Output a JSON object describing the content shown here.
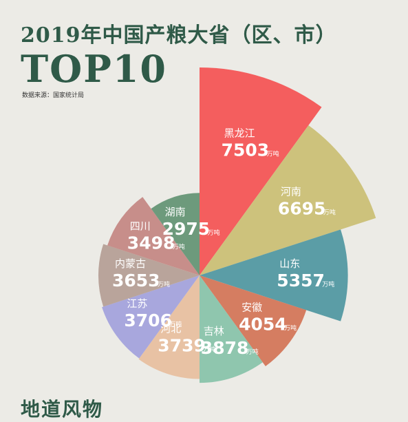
{
  "header": {
    "title": "2019年中国产粮大省（区、市）",
    "subtitle": "TOP10",
    "source": "数据来源：国家统计局"
  },
  "footer": {
    "brand": "地道风物"
  },
  "chart_data": {
    "type": "pie",
    "subtype": "rose",
    "unit": "万吨",
    "categories": [
      "黑龙江",
      "河南",
      "山东",
      "安徽",
      "吉林",
      "河北",
      "江苏",
      "内蒙古",
      "四川",
      "湖南"
    ],
    "values": [
      7503,
      6695,
      5357,
      4054,
      3878,
      3739,
      3706,
      3653,
      3498,
      2975
    ],
    "colors": [
      "#f45e5e",
      "#cdc27c",
      "#5b9da6",
      "#d57d61",
      "#8fc6ae",
      "#e8c2a4",
      "#a8a7dd",
      "#b9a49b",
      "#c78e8a",
      "#6d9a7c"
    ]
  }
}
